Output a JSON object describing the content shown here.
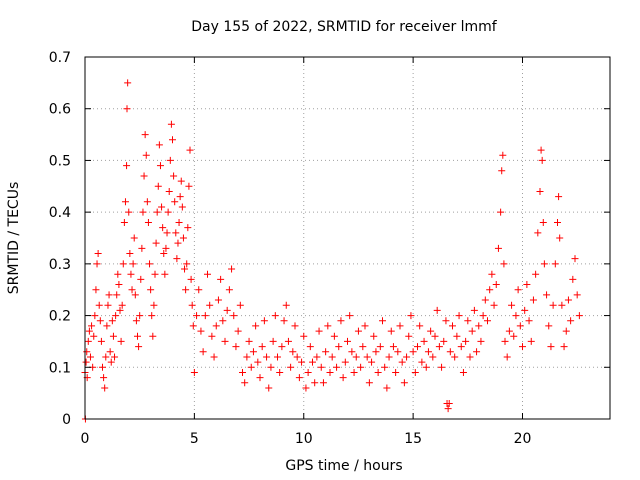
{
  "chart_data": {
    "type": "scatter",
    "title": "Day 155 of 2022, SRMTID for receiver lmmf",
    "xlabel": "GPS time / hours",
    "ylabel": "SRMTID / TECUs",
    "xlim": [
      0,
      24
    ],
    "ylim": [
      0,
      0.7
    ],
    "xticks": [
      0,
      5,
      10,
      15,
      20
    ],
    "xtick_labels": [
      "0",
      "5",
      "10",
      "15",
      "20"
    ],
    "yticks": [
      0,
      0.1,
      0.2,
      0.3,
      0.4,
      0.5,
      0.6,
      0.7
    ],
    "ytick_labels": [
      "0",
      "0.1",
      "0.2",
      "0.3",
      "0.4",
      "0.5",
      "0.6",
      "0.7"
    ],
    "grid": true,
    "marker": "+",
    "color": "#ff0000",
    "series": [
      {
        "name": "SRMTID",
        "points": [
          [
            0.0,
            0.09
          ],
          [
            0.02,
            0.0
          ],
          [
            0.05,
            0.11
          ],
          [
            0.08,
            0.13
          ],
          [
            0.1,
            0.08
          ],
          [
            0.15,
            0.15
          ],
          [
            0.2,
            0.17
          ],
          [
            0.25,
            0.12
          ],
          [
            0.3,
            0.18
          ],
          [
            0.35,
            0.1
          ],
          [
            0.4,
            0.16
          ],
          [
            0.45,
            0.2
          ],
          [
            0.5,
            0.25
          ],
          [
            0.55,
            0.3
          ],
          [
            0.6,
            0.32
          ],
          [
            0.65,
            0.22
          ],
          [
            0.7,
            0.19
          ],
          [
            0.75,
            0.15
          ],
          [
            0.8,
            0.1
          ],
          [
            0.85,
            0.08
          ],
          [
            0.9,
            0.06
          ],
          [
            0.95,
            0.12
          ],
          [
            1.0,
            0.18
          ],
          [
            1.05,
            0.22
          ],
          [
            1.1,
            0.24
          ],
          [
            1.15,
            0.13
          ],
          [
            1.2,
            0.11
          ],
          [
            1.25,
            0.19
          ],
          [
            1.3,
            0.16
          ],
          [
            1.35,
            0.12
          ],
          [
            1.4,
            0.2
          ],
          [
            1.45,
            0.24
          ],
          [
            1.5,
            0.28
          ],
          [
            1.55,
            0.26
          ],
          [
            1.6,
            0.21
          ],
          [
            1.65,
            0.15
          ],
          [
            1.7,
            0.22
          ],
          [
            1.75,
            0.3
          ],
          [
            1.8,
            0.38
          ],
          [
            1.85,
            0.42
          ],
          [
            1.9,
            0.49
          ],
          [
            1.92,
            0.6
          ],
          [
            1.95,
            0.65
          ],
          [
            2.0,
            0.4
          ],
          [
            2.05,
            0.32
          ],
          [
            2.1,
            0.28
          ],
          [
            2.15,
            0.25
          ],
          [
            2.2,
            0.3
          ],
          [
            2.25,
            0.35
          ],
          [
            2.3,
            0.24
          ],
          [
            2.35,
            0.19
          ],
          [
            2.4,
            0.16
          ],
          [
            2.45,
            0.14
          ],
          [
            2.5,
            0.2
          ],
          [
            2.55,
            0.27
          ],
          [
            2.6,
            0.33
          ],
          [
            2.65,
            0.4
          ],
          [
            2.7,
            0.47
          ],
          [
            2.75,
            0.55
          ],
          [
            2.8,
            0.51
          ],
          [
            2.85,
            0.42
          ],
          [
            2.9,
            0.38
          ],
          [
            2.95,
            0.3
          ],
          [
            3.0,
            0.25
          ],
          [
            3.05,
            0.2
          ],
          [
            3.1,
            0.16
          ],
          [
            3.15,
            0.22
          ],
          [
            3.2,
            0.28
          ],
          [
            3.25,
            0.34
          ],
          [
            3.3,
            0.4
          ],
          [
            3.35,
            0.45
          ],
          [
            3.4,
            0.53
          ],
          [
            3.45,
            0.49
          ],
          [
            3.5,
            0.41
          ],
          [
            3.55,
            0.37
          ],
          [
            3.6,
            0.32
          ],
          [
            3.65,
            0.28
          ],
          [
            3.7,
            0.33
          ],
          [
            3.75,
            0.36
          ],
          [
            3.8,
            0.4
          ],
          [
            3.85,
            0.44
          ],
          [
            3.9,
            0.5
          ],
          [
            3.95,
            0.57
          ],
          [
            4.0,
            0.54
          ],
          [
            4.05,
            0.47
          ],
          [
            4.1,
            0.42
          ],
          [
            4.15,
            0.36
          ],
          [
            4.2,
            0.31
          ],
          [
            4.25,
            0.34
          ],
          [
            4.3,
            0.38
          ],
          [
            4.35,
            0.43
          ],
          [
            4.4,
            0.46
          ],
          [
            4.45,
            0.41
          ],
          [
            4.5,
            0.35
          ],
          [
            4.55,
            0.29
          ],
          [
            4.6,
            0.25
          ],
          [
            4.65,
            0.3
          ],
          [
            4.7,
            0.37
          ],
          [
            4.75,
            0.45
          ],
          [
            4.8,
            0.52
          ],
          [
            4.85,
            0.27
          ],
          [
            4.9,
            0.22
          ],
          [
            4.95,
            0.18
          ],
          [
            5.0,
            0.09
          ],
          [
            5.1,
            0.2
          ],
          [
            5.2,
            0.25
          ],
          [
            5.3,
            0.17
          ],
          [
            5.4,
            0.13
          ],
          [
            5.5,
            0.2
          ],
          [
            5.6,
            0.28
          ],
          [
            5.7,
            0.22
          ],
          [
            5.8,
            0.16
          ],
          [
            5.9,
            0.12
          ],
          [
            6.0,
            0.18
          ],
          [
            6.1,
            0.23
          ],
          [
            6.2,
            0.27
          ],
          [
            6.3,
            0.19
          ],
          [
            6.4,
            0.15
          ],
          [
            6.5,
            0.21
          ],
          [
            6.6,
            0.25
          ],
          [
            6.7,
            0.29
          ],
          [
            6.8,
            0.2
          ],
          [
            6.9,
            0.14
          ],
          [
            7.0,
            0.17
          ],
          [
            7.1,
            0.22
          ],
          [
            7.2,
            0.09
          ],
          [
            7.3,
            0.07
          ],
          [
            7.4,
            0.12
          ],
          [
            7.5,
            0.15
          ],
          [
            7.6,
            0.1
          ],
          [
            7.7,
            0.13
          ],
          [
            7.8,
            0.18
          ],
          [
            7.9,
            0.11
          ],
          [
            8.0,
            0.08
          ],
          [
            8.1,
            0.14
          ],
          [
            8.2,
            0.19
          ],
          [
            8.3,
            0.12
          ],
          [
            8.4,
            0.06
          ],
          [
            8.5,
            0.1
          ],
          [
            8.6,
            0.15
          ],
          [
            8.7,
            0.2
          ],
          [
            8.8,
            0.12
          ],
          [
            8.9,
            0.09
          ],
          [
            9.0,
            0.14
          ],
          [
            9.1,
            0.19
          ],
          [
            9.2,
            0.22
          ],
          [
            9.3,
            0.15
          ],
          [
            9.4,
            0.1
          ],
          [
            9.5,
            0.13
          ],
          [
            9.6,
            0.18
          ],
          [
            9.7,
            0.12
          ],
          [
            9.8,
            0.08
          ],
          [
            9.9,
            0.11
          ],
          [
            10.0,
            0.16
          ],
          [
            10.1,
            0.06
          ],
          [
            10.2,
            0.09
          ],
          [
            10.3,
            0.14
          ],
          [
            10.4,
            0.11
          ],
          [
            10.5,
            0.07
          ],
          [
            10.6,
            0.12
          ],
          [
            10.7,
            0.17
          ],
          [
            10.8,
            0.1
          ],
          [
            10.9,
            0.07
          ],
          [
            11.0,
            0.13
          ],
          [
            11.1,
            0.18
          ],
          [
            11.2,
            0.09
          ],
          [
            11.3,
            0.12
          ],
          [
            11.4,
            0.16
          ],
          [
            11.5,
            0.1
          ],
          [
            11.6,
            0.14
          ],
          [
            11.7,
            0.19
          ],
          [
            11.8,
            0.08
          ],
          [
            11.9,
            0.11
          ],
          [
            12.0,
            0.15
          ],
          [
            12.1,
            0.2
          ],
          [
            12.2,
            0.13
          ],
          [
            12.3,
            0.09
          ],
          [
            12.4,
            0.12
          ],
          [
            12.5,
            0.17
          ],
          [
            12.6,
            0.1
          ],
          [
            12.7,
            0.14
          ],
          [
            12.8,
            0.18
          ],
          [
            12.9,
            0.12
          ],
          [
            13.0,
            0.07
          ],
          [
            13.1,
            0.11
          ],
          [
            13.2,
            0.16
          ],
          [
            13.3,
            0.13
          ],
          [
            13.4,
            0.09
          ],
          [
            13.5,
            0.14
          ],
          [
            13.6,
            0.19
          ],
          [
            13.7,
            0.1
          ],
          [
            13.8,
            0.06
          ],
          [
            13.9,
            0.12
          ],
          [
            14.0,
            0.17
          ],
          [
            14.1,
            0.14
          ],
          [
            14.2,
            0.09
          ],
          [
            14.3,
            0.13
          ],
          [
            14.4,
            0.18
          ],
          [
            14.5,
            0.11
          ],
          [
            14.6,
            0.07
          ],
          [
            14.7,
            0.12
          ],
          [
            14.8,
            0.16
          ],
          [
            14.9,
            0.2
          ],
          [
            15.0,
            0.13
          ],
          [
            15.1,
            0.09
          ],
          [
            15.2,
            0.14
          ],
          [
            15.3,
            0.18
          ],
          [
            15.4,
            0.11
          ],
          [
            15.5,
            0.15
          ],
          [
            15.6,
            0.1
          ],
          [
            15.7,
            0.13
          ],
          [
            15.8,
            0.17
          ],
          [
            15.9,
            0.12
          ],
          [
            16.0,
            0.16
          ],
          [
            16.1,
            0.21
          ],
          [
            16.2,
            0.14
          ],
          [
            16.3,
            0.1
          ],
          [
            16.4,
            0.15
          ],
          [
            16.5,
            0.19
          ],
          [
            16.55,
            0.03
          ],
          [
            16.6,
            0.02
          ],
          [
            16.65,
            0.03
          ],
          [
            16.7,
            0.13
          ],
          [
            16.8,
            0.18
          ],
          [
            16.9,
            0.12
          ],
          [
            17.0,
            0.16
          ],
          [
            17.1,
            0.2
          ],
          [
            17.2,
            0.14
          ],
          [
            17.3,
            0.09
          ],
          [
            17.4,
            0.15
          ],
          [
            17.5,
            0.19
          ],
          [
            17.6,
            0.12
          ],
          [
            17.7,
            0.17
          ],
          [
            17.8,
            0.21
          ],
          [
            17.9,
            0.13
          ],
          [
            18.0,
            0.18
          ],
          [
            18.1,
            0.15
          ],
          [
            18.2,
            0.2
          ],
          [
            18.3,
            0.23
          ],
          [
            18.4,
            0.19
          ],
          [
            18.5,
            0.25
          ],
          [
            18.6,
            0.28
          ],
          [
            18.7,
            0.22
          ],
          [
            18.8,
            0.26
          ],
          [
            18.9,
            0.33
          ],
          [
            19.0,
            0.4
          ],
          [
            19.05,
            0.48
          ],
          [
            19.1,
            0.51
          ],
          [
            19.15,
            0.3
          ],
          [
            19.2,
            0.15
          ],
          [
            19.3,
            0.12
          ],
          [
            19.4,
            0.17
          ],
          [
            19.5,
            0.22
          ],
          [
            19.6,
            0.16
          ],
          [
            19.7,
            0.2
          ],
          [
            19.8,
            0.25
          ],
          [
            19.9,
            0.18
          ],
          [
            20.0,
            0.14
          ],
          [
            20.1,
            0.21
          ],
          [
            20.2,
            0.26
          ],
          [
            20.3,
            0.19
          ],
          [
            20.4,
            0.15
          ],
          [
            20.5,
            0.23
          ],
          [
            20.6,
            0.28
          ],
          [
            20.7,
            0.36
          ],
          [
            20.8,
            0.44
          ],
          [
            20.85,
            0.52
          ],
          [
            20.9,
            0.5
          ],
          [
            20.95,
            0.38
          ],
          [
            21.0,
            0.3
          ],
          [
            21.1,
            0.24
          ],
          [
            21.2,
            0.18
          ],
          [
            21.3,
            0.14
          ],
          [
            21.4,
            0.22
          ],
          [
            21.5,
            0.3
          ],
          [
            21.6,
            0.38
          ],
          [
            21.65,
            0.43
          ],
          [
            21.7,
            0.35
          ],
          [
            21.8,
            0.22
          ],
          [
            21.9,
            0.14
          ],
          [
            22.0,
            0.17
          ],
          [
            22.1,
            0.23
          ],
          [
            22.2,
            0.19
          ],
          [
            22.3,
            0.27
          ],
          [
            22.4,
            0.31
          ],
          [
            22.5,
            0.24
          ],
          [
            22.6,
            0.2
          ]
        ]
      }
    ]
  }
}
